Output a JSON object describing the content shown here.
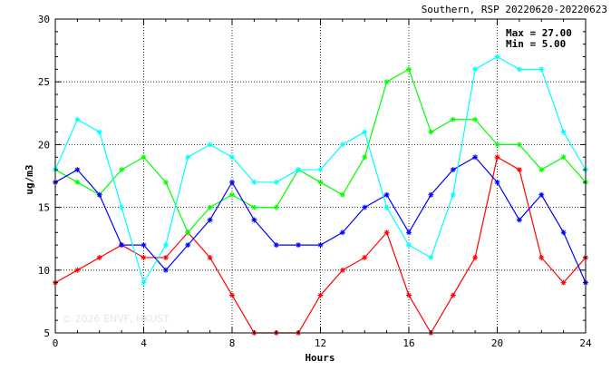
{
  "chart_data": {
    "type": "line",
    "title": "Southern, RSP 20220620-20220623",
    "xlabel": "Hours",
    "ylabel": "ug/m3",
    "xlim": [
      0,
      24
    ],
    "ylim": [
      5,
      30
    ],
    "xticks": [
      0,
      4,
      8,
      12,
      16,
      20,
      24
    ],
    "yticks": [
      5,
      10,
      15,
      20,
      25,
      30
    ],
    "grid": true,
    "stats": {
      "max_label": "Max = 27.00",
      "min_label": "Min =  5.00"
    },
    "watermark": "© 2026  ENVF, HKUST",
    "x": [
      0,
      1,
      2,
      3,
      4,
      5,
      6,
      7,
      8,
      9,
      10,
      11,
      12,
      13,
      14,
      15,
      16,
      17,
      18,
      19,
      20,
      21,
      22,
      23,
      24
    ],
    "series": [
      {
        "color": "#ff0000",
        "values": [
          9,
          10,
          11,
          12,
          11,
          11,
          13,
          11,
          8,
          5,
          5,
          5,
          8,
          10,
          11,
          13,
          8,
          5,
          8,
          11,
          19,
          18,
          11,
          9,
          11
        ]
      },
      {
        "color": "#00ff00",
        "values": [
          18,
          17,
          16,
          18,
          19,
          17,
          13,
          15,
          16,
          15,
          15,
          18,
          17,
          16,
          19,
          25,
          26,
          21,
          22,
          22,
          20,
          20,
          18,
          19,
          17
        ]
      },
      {
        "color": "#0000ff",
        "values": [
          17,
          18,
          16,
          12,
          12,
          10,
          12,
          14,
          17,
          14,
          12,
          12,
          12,
          13,
          15,
          16,
          13,
          16,
          18,
          19,
          17,
          14,
          16,
          13,
          9
        ]
      },
      {
        "color": "#00ffff",
        "values": [
          18,
          22,
          21,
          15,
          9,
          12,
          19,
          20,
          19,
          17,
          17,
          18,
          18,
          20,
          21,
          15,
          12,
          11,
          16,
          26,
          27,
          26,
          26,
          21,
          18
        ]
      }
    ]
  }
}
